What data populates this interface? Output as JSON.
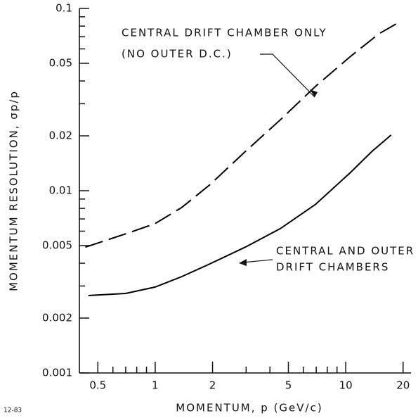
{
  "chart_data": {
    "type": "line",
    "log_x": true,
    "log_y": true,
    "xlabel": "MOMENTUM, p (GeV/c)",
    "ylabel": "MOMENTUM RESOLUTION, σp/p",
    "footnote": "12-83",
    "xlim": [
      0.4,
      22
    ],
    "ylim": [
      0.001,
      0.1
    ],
    "xticks": [
      0.5,
      1,
      2,
      5,
      10,
      20
    ],
    "xticks_minor": [
      0.6,
      0.7,
      0.8,
      0.9,
      3,
      4,
      6,
      7,
      8,
      9
    ],
    "yticks": [
      0.001,
      0.002,
      0.005,
      0.01,
      0.02,
      0.05,
      0.1
    ],
    "yticks_minor": [
      0.003,
      0.004,
      0.006,
      0.007,
      0.008,
      0.009,
      0.03,
      0.04,
      0.06,
      0.07,
      0.08,
      0.09
    ],
    "series": [
      {
        "color": "#000000",
        "dashed": true,
        "x": [
          0.43,
          0.7,
          1,
          1.38,
          1.94,
          2.97,
          4.54,
          6.93,
          10.6,
          14.9,
          18.9
        ],
        "values": [
          0.0049,
          0.0058,
          0.0066,
          0.0081,
          0.0108,
          0.0164,
          0.0245,
          0.0373,
          0.0546,
          0.0725,
          0.0836
        ]
      },
      {
        "color": "#000000",
        "dashed": false,
        "x": [
          0.446,
          0.7,
          1,
          1.38,
          1.94,
          2.97,
          4.54,
          6.93,
          10.6,
          13.7,
          17.3
        ],
        "values": [
          0.00266,
          0.00273,
          0.00296,
          0.00338,
          0.00397,
          0.0049,
          0.0062,
          0.0084,
          0.0126,
          0.0164,
          0.0202
        ]
      }
    ],
    "annotations": [
      {
        "lines": [
          "CENTRAL DRIFT CHAMBER ONLY",
          "(NO OUTER D.C.)"
        ]
      },
      {
        "lines": [
          "CENTRAL AND OUTER",
          "DRIFT CHAMBERS"
        ]
      }
    ]
  }
}
